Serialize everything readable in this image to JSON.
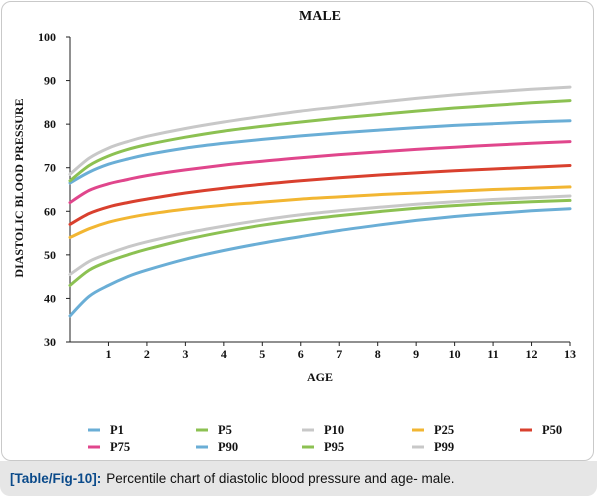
{
  "chart_data": {
    "type": "line",
    "title": "MALE",
    "xlabel": "AGE",
    "ylabel": "DIASTOLIC BLOOD PRESSURE",
    "xlim": [
      0,
      13
    ],
    "ylim": [
      30,
      100
    ],
    "xticks": [
      1,
      2,
      3,
      4,
      5,
      6,
      7,
      8,
      9,
      10,
      11,
      12,
      13
    ],
    "yticks": [
      30,
      40,
      50,
      60,
      70,
      80,
      90,
      100
    ],
    "grid": false,
    "legend": "bottom",
    "x": [
      0,
      0.5,
      1,
      1.5,
      2,
      3,
      4,
      5,
      6,
      7,
      8,
      9,
      10,
      11,
      12,
      13
    ],
    "series": [
      {
        "name": "P1",
        "color": "#6aaed6",
        "values": [
          36.0,
          40.5,
          43.0,
          45.0,
          46.5,
          49.0,
          51.0,
          52.7,
          54.2,
          55.6,
          56.8,
          57.9,
          58.8,
          59.5,
          60.1,
          60.6
        ]
      },
      {
        "name": "P5",
        "color": "#8cc152",
        "values": [
          43.0,
          46.5,
          48.5,
          50.0,
          51.3,
          53.5,
          55.3,
          56.8,
          58.0,
          59.0,
          59.9,
          60.7,
          61.3,
          61.8,
          62.2,
          62.5
        ]
      },
      {
        "name": "P10",
        "color": "#c8c8c8",
        "values": [
          45.5,
          48.5,
          50.3,
          51.8,
          53.0,
          55.0,
          56.6,
          58.0,
          59.2,
          60.1,
          60.9,
          61.6,
          62.2,
          62.7,
          63.1,
          63.5
        ]
      },
      {
        "name": "P25",
        "color": "#f2b632",
        "values": [
          54.0,
          56.0,
          57.5,
          58.5,
          59.3,
          60.5,
          61.4,
          62.1,
          62.8,
          63.3,
          63.8,
          64.2,
          64.6,
          65.0,
          65.3,
          65.6
        ]
      },
      {
        "name": "P50",
        "color": "#d9402e",
        "values": [
          57.0,
          59.5,
          61.0,
          62.0,
          62.8,
          64.2,
          65.3,
          66.2,
          67.0,
          67.7,
          68.3,
          68.8,
          69.3,
          69.7,
          70.1,
          70.5
        ]
      },
      {
        "name": "P75",
        "color": "#e0468c",
        "values": [
          62.0,
          64.8,
          66.3,
          67.3,
          68.2,
          69.5,
          70.6,
          71.5,
          72.3,
          73.0,
          73.6,
          74.2,
          74.7,
          75.2,
          75.6,
          76.0
        ]
      },
      {
        "name": "P90",
        "color": "#6aaed6",
        "values": [
          66.5,
          69.0,
          70.8,
          72.0,
          73.0,
          74.5,
          75.6,
          76.5,
          77.3,
          78.0,
          78.6,
          79.2,
          79.7,
          80.1,
          80.5,
          80.8
        ]
      },
      {
        "name": "P95",
        "color": "#8cc152",
        "values": [
          67.0,
          70.5,
          72.7,
          74.2,
          75.3,
          77.0,
          78.4,
          79.5,
          80.5,
          81.4,
          82.2,
          83.0,
          83.7,
          84.3,
          84.9,
          85.4
        ]
      },
      {
        "name": "P99",
        "color": "#c8c8c8",
        "values": [
          68.5,
          72.2,
          74.5,
          76.0,
          77.2,
          79.0,
          80.5,
          81.8,
          83.0,
          84.0,
          85.0,
          85.9,
          86.7,
          87.4,
          88.0,
          88.5
        ]
      }
    ]
  },
  "caption": {
    "tag": "[Table/Fig-10]:",
    "text": "Percentile chart of diastolic blood pressure and age- male."
  }
}
